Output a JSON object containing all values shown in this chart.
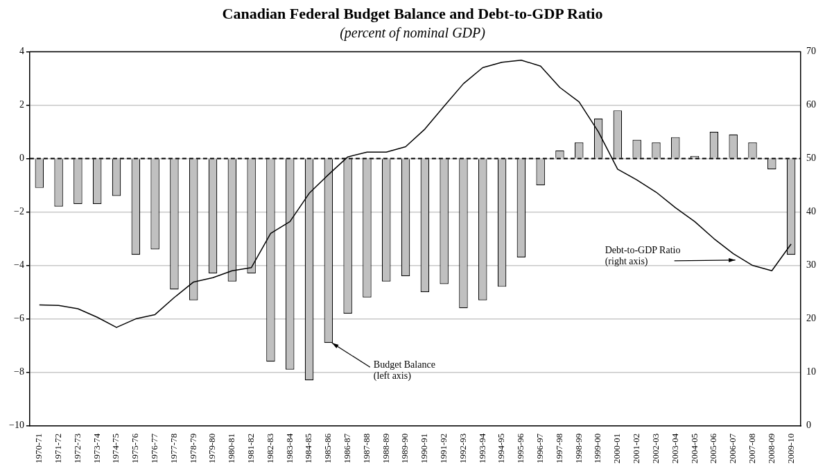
{
  "chart_data": {
    "type": "bar",
    "title": "Canadian Federal Budget Balance and Debt-to-GDP Ratio",
    "subtitle": "(percent of nominal GDP)",
    "categories": [
      "1970-71",
      "1971-72",
      "1972-73",
      "1973-74",
      "1974-75",
      "1975-76",
      "1976-77",
      "1977-78",
      "1978-79",
      "1979-80",
      "1980-81",
      "1981-82",
      "1982-83",
      "1983-84",
      "1984-85",
      "1985-86",
      "1986-87",
      "1987-88",
      "1988-89",
      "1989-90",
      "1990-91",
      "1991-92",
      "1992-93",
      "1993-94",
      "1994-95",
      "1995-96",
      "1996-97",
      "1997-98",
      "1998-99",
      "1999-00",
      "2000-01",
      "2001-02",
      "2002-03",
      "2003-04",
      "2004-05",
      "2005-06",
      "2006-07",
      "2007-08",
      "2008-09",
      "2009-10"
    ],
    "series": [
      {
        "color": "#c0c0c0",
        "values": [
          -1.1,
          -1.8,
          -1.7,
          -1.7,
          -1.4,
          -3.6,
          -3.4,
          -4.9,
          -5.3,
          -4.3,
          -4.6,
          -4.3,
          -7.6,
          -7.9,
          -8.3,
          -6.9,
          -5.8,
          -5.2,
          -4.6,
          -4.4,
          -5.0,
          -4.7,
          -5.6,
          -5.3,
          -4.8,
          -3.7,
          -1.0,
          0.3,
          0.6,
          1.5,
          1.8,
          0.7,
          0.6,
          0.8,
          0.1,
          1.0,
          0.9,
          0.6,
          -0.4,
          -3.6
        ]
      },
      {
        "type": "line",
        "axis": "y2",
        "color": "#000000",
        "values": [
          22.6,
          22.5,
          21.9,
          20.3,
          18.4,
          20.0,
          20.8,
          24.0,
          26.9,
          27.7,
          29.0,
          29.6,
          36.0,
          38.2,
          43.5,
          47.0,
          50.3,
          51.2,
          51.2,
          52.2,
          55.5,
          59.8,
          64.0,
          67.0,
          68.0,
          68.4,
          67.3,
          63.3,
          60.6,
          55.0,
          48.0,
          46.0,
          43.7,
          40.8,
          38.2,
          35.0,
          32.2,
          30.0,
          29.0,
          34.0
        ]
      }
    ],
    "ylim": [
      -10,
      4
    ],
    "yticks": [
      {
        "value": -10,
        "label": "−10"
      },
      {
        "value": -8,
        "label": "−8"
      },
      {
        "value": -6,
        "label": "−6"
      },
      {
        "value": -4,
        "label": "−4"
      },
      {
        "value": -2,
        "label": "−2"
      },
      0,
      2,
      4
    ],
    "y2lim": [
      0,
      70
    ],
    "y2ticks": [
      0,
      10,
      20,
      30,
      40,
      50,
      60,
      70
    ],
    "ref_lines": [
      {
        "axis": "y",
        "value": 0,
        "color": "#000000",
        "line_style": "dashed"
      }
    ],
    "annotations": [
      {
        "text": "Budget Balance\n(left axis)",
        "x": "1985-86",
        "y": -6.9
      },
      {
        "text": "Debt-to-GDP Ratio\n(right axis)",
        "x": "2006-07",
        "y": -3.8
      }
    ],
    "grid": "y",
    "legend": false,
    "marker": "none",
    "line_style": "solid"
  }
}
